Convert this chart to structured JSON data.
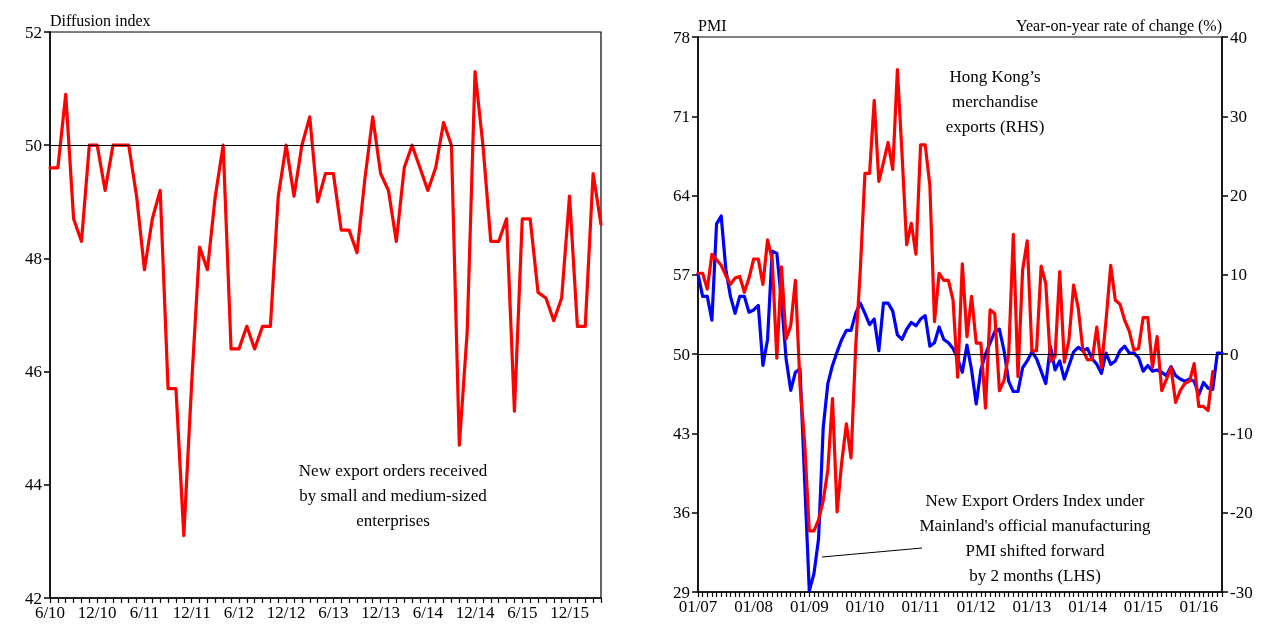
{
  "chart_data": [
    {
      "type": "line",
      "ylabel": "Diffusion index",
      "categories": [
        "6/10",
        null,
        null,
        null,
        null,
        null,
        "12/10",
        null,
        null,
        null,
        null,
        null,
        "6/11",
        null,
        null,
        null,
        null,
        null,
        "12/11",
        null,
        null,
        null,
        null,
        null,
        "6/12",
        null,
        null,
        null,
        null,
        null,
        "12/12",
        null,
        null,
        null,
        null,
        null,
        "6/13",
        null,
        null,
        null,
        null,
        null,
        "12/13",
        null,
        null,
        null,
        null,
        null,
        "6/14",
        null,
        null,
        null,
        null,
        null,
        "12/14",
        null,
        null,
        null,
        null,
        null,
        "6/15",
        null,
        null,
        null,
        null,
        null,
        "12/15",
        null,
        null,
        null,
        null
      ],
      "series": [
        {
          "name": "New export orders received\nby small and medium-sized\nenterprises",
          "color": "#ff0000",
          "values": [
            49.6,
            49.6,
            50.9,
            48.7,
            48.3,
            50.0,
            50.0,
            49.2,
            50.0,
            50.0,
            50.0,
            49.1,
            47.8,
            48.7,
            49.2,
            45.7,
            45.7,
            43.1,
            45.8,
            48.2,
            47.8,
            49.1,
            50.0,
            46.4,
            46.4,
            46.8,
            46.4,
            46.8,
            46.8,
            49.1,
            50.0,
            49.1,
            50.0,
            50.5,
            49.0,
            49.5,
            49.5,
            48.5,
            48.5,
            48.1,
            49.4,
            50.5,
            49.5,
            49.2,
            48.3,
            49.6,
            50.0,
            49.6,
            49.2,
            49.6,
            50.4,
            50.0,
            44.7,
            46.7,
            51.3,
            50.0,
            48.3,
            48.3,
            48.7,
            45.3,
            48.7,
            48.7,
            47.4,
            47.3,
            46.9,
            47.3,
            49.1,
            46.8,
            46.8,
            49.5,
            48.6
          ]
        }
      ],
      "ylim": [
        42,
        52
      ],
      "yticks": [
        42,
        44,
        46,
        48,
        50,
        52
      ],
      "ref_lines": [
        {
          "axis": "y",
          "value": 50
        }
      ],
      "marker": "none",
      "grid": false
    },
    {
      "type": "line",
      "ylabel": "PMI",
      "y2label": "Year-on-year rate of change (%)",
      "categories": [
        "01/07",
        null,
        null,
        null,
        null,
        null,
        null,
        null,
        null,
        null,
        null,
        null,
        "01/08",
        null,
        null,
        null,
        null,
        null,
        null,
        null,
        null,
        null,
        null,
        null,
        "01/09",
        null,
        null,
        null,
        null,
        null,
        null,
        null,
        null,
        null,
        null,
        null,
        "01/10",
        null,
        null,
        null,
        null,
        null,
        null,
        null,
        null,
        null,
        null,
        null,
        "01/11",
        null,
        null,
        null,
        null,
        null,
        null,
        null,
        null,
        null,
        null,
        null,
        "01/12",
        null,
        null,
        null,
        null,
        null,
        null,
        null,
        null,
        null,
        null,
        null,
        "01/13",
        null,
        null,
        null,
        null,
        null,
        null,
        null,
        null,
        null,
        null,
        null,
        "01/14",
        null,
        null,
        null,
        null,
        null,
        null,
        null,
        null,
        null,
        null,
        null,
        "01/15",
        null,
        null,
        null,
        null,
        null,
        null,
        null,
        null,
        null,
        null,
        null,
        "01/16",
        null,
        null,
        null,
        null,
        null
      ],
      "series": [
        {
          "color": "#0000ff",
          "values": [
            57.1,
            55.1,
            55.1,
            53.0,
            61.5,
            62.2,
            57.5,
            55.1,
            53.6,
            55.1,
            55.1,
            53.7,
            53.9,
            54.3,
            49.0,
            51.3,
            59.1,
            58.9,
            54.7,
            49.6,
            46.8,
            48.4,
            48.7,
            38.8,
            29.1,
            30.6,
            33.7,
            43.5,
            47.4,
            49.0,
            50.2,
            51.3,
            52.1,
            52.1,
            53.6,
            54.5,
            53.6,
            52.6,
            53.1,
            50.3,
            54.5,
            54.5,
            53.8,
            51.7,
            51.3,
            52.2,
            52.8,
            52.5,
            53.1,
            53.4,
            50.7,
            51.0,
            52.4,
            51.3,
            51.0,
            50.5,
            49.6,
            48.4,
            50.8,
            48.6,
            45.6,
            48.6,
            50.0,
            51.0,
            52.0,
            52.2,
            50.3,
            47.6,
            46.7,
            46.7,
            48.8,
            49.4,
            50.2,
            49.6,
            48.5,
            47.4,
            50.7,
            48.6,
            49.4,
            47.8,
            49.0,
            50.2,
            50.6,
            50.3,
            50.5,
            49.6,
            49.1,
            48.3,
            50.1,
            49.1,
            49.4,
            50.3,
            50.7,
            50.1,
            50.1,
            49.7,
            48.5,
            49.0,
            48.5,
            48.6,
            48.4,
            48.1,
            48.9,
            48.1,
            47.8,
            47.6,
            47.8,
            47.6,
            46.4,
            47.5,
            47.0,
            46.9,
            50.1,
            50.1
          ]
        },
        {
          "name": "Hong Kong’s\nmerchandise\nexports (RHS)",
          "color": "#ff0000",
          "axis": "y2",
          "values": [
            10.2,
            10.2,
            8.2,
            12.6,
            11.9,
            11.2,
            9.9,
            8.8,
            9.6,
            9.8,
            7.8,
            9.6,
            12.0,
            12.0,
            8.8,
            14.4,
            11.9,
            -0.5,
            11.0,
            1.9,
            3.6,
            9.3,
            -3.9,
            -11.2,
            -22.3,
            -22.3,
            -20.9,
            -18.5,
            -14.6,
            -5.6,
            -19.9,
            -13.6,
            -8.8,
            -13.1,
            0.9,
            10.6,
            22.8,
            22.8,
            32.0,
            21.8,
            24.2,
            26.7,
            23.3,
            35.9,
            25.2,
            13.8,
            16.5,
            12.6,
            26.4,
            26.4,
            21.3,
            4.1,
            10.2,
            9.3,
            9.3,
            6.8,
            -2.9,
            11.4,
            2.2,
            7.3,
            1.4,
            1.4,
            -6.8,
            5.6,
            5.1,
            -4.6,
            -3.3,
            0.0,
            15.1,
            -2.8,
            10.6,
            14.3,
            0.4,
            0.4,
            11.1,
            8.9,
            -0.9,
            -0.3,
            10.4,
            -1.0,
            1.8,
            8.7,
            5.8,
            0.5,
            -0.7,
            -0.7,
            3.4,
            -1.7,
            4.3,
            11.2,
            6.8,
            6.3,
            4.3,
            2.9,
            0.5,
            0.7,
            4.6,
            4.6,
            -1.7,
            2.2,
            -4.6,
            -3.2,
            -1.7,
            -6.1,
            -4.6,
            -3.7,
            -3.4,
            -1.2,
            -6.6,
            -6.6,
            -7.1,
            -2.2,
            null,
            null
          ]
        }
      ],
      "annotations": [
        "New Export Orders Index under\nMainland's official manufacturing\nPMI shifted forward\nby 2 months (LHS)"
      ],
      "ylim": [
        29,
        78
      ],
      "yticks": [
        29,
        36,
        43,
        50,
        57,
        64,
        71,
        78
      ],
      "y2lim": [
        -30,
        40
      ],
      "y2ticks": [
        -30,
        -20,
        -10,
        0,
        10,
        20,
        30,
        40
      ],
      "ref_lines": [
        {
          "axis": "y",
          "value": 50
        }
      ],
      "marker": "none",
      "grid": false
    }
  ]
}
